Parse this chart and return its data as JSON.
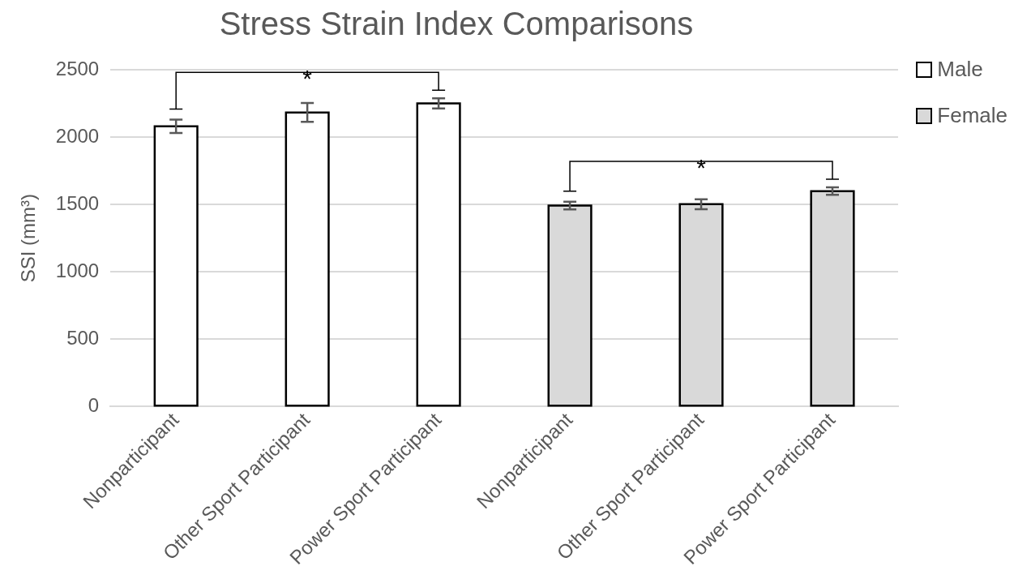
{
  "chart_data": {
    "type": "bar",
    "title": "Stress Strain Index Comparisons",
    "ylabel": "SSI (mm³)",
    "categories": [
      "Nonparticipant",
      "Other Sport Participant",
      "Power Sport Participant",
      "Nonparticipant",
      "Other Sport Participant",
      "Power Sport Participant"
    ],
    "series": [
      {
        "name": "Male",
        "color": "#ffffff",
        "values": [
          2080,
          2183,
          2250,
          null,
          null,
          null
        ],
        "errors": [
          50,
          70,
          38,
          null,
          null,
          null
        ]
      },
      {
        "name": "Female",
        "color": "#d9d9d9",
        "values": [
          null,
          null,
          null,
          1492,
          1502,
          1599
        ],
        "errors": [
          null,
          null,
          null,
          28,
          37,
          28
        ]
      }
    ],
    "ylim": [
      0,
      2500
    ],
    "yticks": [
      0,
      500,
      1000,
      1500,
      2000,
      2500
    ],
    "grid": "y",
    "legend": "top right",
    "annotations": [
      "*",
      "*"
    ]
  }
}
